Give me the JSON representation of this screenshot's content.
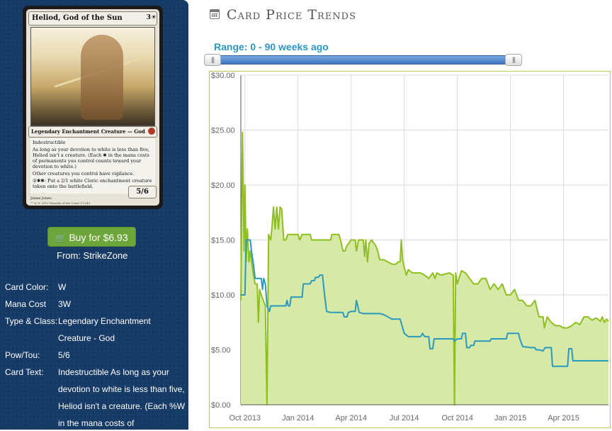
{
  "card": {
    "name": "Heliod, God of the Sun",
    "cost": "3☀",
    "type_line": "Legendary Enchantment Creature — God",
    "rules": [
      "Indestructible",
      "As long as your devotion to white is less than five, Heliod isn't a creature. (Each ✱ in the mana costs of permanents you control counts toward your devotion to white.)",
      "Other creatures you control have vigilance.",
      "②✱✱: Put a 2/1 white Cleric enchantment creature token onto the battlefield."
    ],
    "power_toughness": "5/6",
    "artist": "Jaime Jones",
    "copyright": "™ & © 2013 Wizards of the Coast 17/249"
  },
  "buy": {
    "icon": "shopping-cart-icon",
    "label": "Buy for $6.93",
    "from": "From: StrikeZone"
  },
  "info": [
    {
      "label": "Card Color:",
      "value": "W"
    },
    {
      "label": "Mana Cost",
      "value": "3W"
    },
    {
      "label": "Type & Class:",
      "value": "Legendary Enchantment Creature - God"
    },
    {
      "label": "Pow/Tou:",
      "value": "5/6"
    },
    {
      "label": "Card Text:",
      "value": "Indestructible As long as your devotion to white is less than five, Heliod isn't a creature. (Each %W in the mana costs of"
    }
  ],
  "header": {
    "icon": "calendar-icon",
    "title": "Card Price Trends"
  },
  "range": {
    "label": "Range: 0 - 90 weeks ago",
    "left_handle": "|||",
    "right_handle": "|||"
  },
  "colors": {
    "green": "#8fbf1f",
    "green_fill": "#d6e9a6",
    "blue": "#2a9bbf",
    "sidebar": "#163a66",
    "button": "#6ca63a"
  },
  "chart_data": {
    "type": "line",
    "title": "",
    "xlabel": "",
    "ylabel": "",
    "ylim": [
      0,
      30
    ],
    "xlim": [
      0,
      90
    ],
    "y_ticks": [
      "$0.00",
      "$5.00",
      "$10.00",
      "$15.00",
      "$20.00",
      "$25.00",
      "$30.00"
    ],
    "x_ticks": [
      {
        "label": "Oct 2013",
        "x": 1
      },
      {
        "label": "Jan 2014",
        "x": 14
      },
      {
        "label": "Apr 2014",
        "x": 27
      },
      {
        "label": "Jul 2014",
        "x": 40
      },
      {
        "label": "Oct 2014",
        "x": 53
      },
      {
        "label": "Jan 2015",
        "x": 66
      },
      {
        "label": "Apr 2015",
        "x": 79
      }
    ],
    "grid": true,
    "series": [
      {
        "color": "#8fbf1f",
        "fill": true,
        "points": [
          [
            0,
            9.5
          ],
          [
            0.4,
            24.8
          ],
          [
            0.8,
            14
          ],
          [
            1,
            20
          ],
          [
            1.3,
            13
          ],
          [
            1.6,
            16
          ],
          [
            2,
            13
          ],
          [
            2.3,
            14
          ],
          [
            3,
            12
          ],
          [
            3.5,
            11
          ],
          [
            4,
            11
          ],
          [
            4.3,
            7.5
          ],
          [
            4.6,
            10.5
          ],
          [
            5,
            10
          ],
          [
            5.5,
            9.5
          ],
          [
            6,
            9
          ],
          [
            6.4,
            0
          ],
          [
            6.8,
            15.5
          ],
          [
            7.3,
            15
          ],
          [
            7.6,
            16
          ],
          [
            8,
            18
          ],
          [
            8.4,
            16
          ],
          [
            8.8,
            18
          ],
          [
            9.2,
            16
          ],
          [
            9.6,
            18
          ],
          [
            10,
            17.8
          ],
          [
            10.5,
            15
          ],
          [
            11,
            15
          ],
          [
            11.5,
            15.5
          ],
          [
            13,
            15.5
          ],
          [
            14,
            15.5
          ],
          [
            14.4,
            15
          ],
          [
            15,
            15.5
          ],
          [
            17,
            15.5
          ],
          [
            17.3,
            15
          ],
          [
            22,
            15
          ],
          [
            22.3,
            15.5
          ],
          [
            24,
            15.5
          ],
          [
            24.4,
            15
          ],
          [
            25,
            14
          ],
          [
            25.5,
            14
          ],
          [
            26,
            14.5
          ],
          [
            27,
            15
          ],
          [
            28,
            15
          ],
          [
            28.3,
            14
          ],
          [
            28.8,
            15
          ],
          [
            30,
            15
          ],
          [
            30.3,
            13.5
          ],
          [
            30.6,
            15
          ],
          [
            31,
            13
          ],
          [
            31.4,
            14.7
          ],
          [
            32,
            15
          ],
          [
            33,
            14.5
          ],
          [
            33.5,
            14
          ],
          [
            34,
            13.2
          ],
          [
            35,
            13.2
          ],
          [
            36,
            13
          ],
          [
            37,
            12.8
          ],
          [
            38,
            12.8
          ],
          [
            38.5,
            13
          ],
          [
            39,
            13
          ],
          [
            39.3,
            15
          ],
          [
            39.6,
            13.2
          ],
          [
            40,
            12.5
          ],
          [
            40.5,
            11.8
          ],
          [
            41,
            12.3
          ],
          [
            42,
            12
          ],
          [
            43,
            12
          ],
          [
            44,
            12
          ],
          [
            45,
            11.8
          ],
          [
            46,
            11.5
          ],
          [
            47,
            12
          ],
          [
            47.5,
            11.5
          ],
          [
            48,
            12
          ],
          [
            49,
            11.8
          ],
          [
            50,
            11.9
          ],
          [
            51,
            12
          ],
          [
            52,
            11.8
          ],
          [
            52.3,
            0
          ],
          [
            52.6,
            12
          ],
          [
            53,
            11
          ],
          [
            54,
            12.2
          ],
          [
            55,
            12
          ],
          [
            56,
            11.5
          ],
          [
            57,
            11
          ],
          [
            58,
            11
          ],
          [
            59,
            11.5
          ],
          [
            60,
            11.5
          ],
          [
            61,
            10.5
          ],
          [
            62,
            11
          ],
          [
            63,
            10.5
          ],
          [
            64,
            11
          ],
          [
            65,
            10
          ],
          [
            66,
            10
          ],
          [
            67,
            10.5
          ],
          [
            68,
            9.5
          ],
          [
            69,
            9.5
          ],
          [
            70,
            9
          ],
          [
            71,
            9
          ],
          [
            72,
            9.5
          ],
          [
            73,
            8
          ],
          [
            74,
            8
          ],
          [
            74.3,
            7
          ],
          [
            75,
            8
          ],
          [
            76,
            7.5
          ],
          [
            77,
            7.2
          ],
          [
            78,
            7.2
          ],
          [
            79,
            7
          ],
          [
            80,
            7
          ],
          [
            81,
            7.2
          ],
          [
            82,
            7.5
          ],
          [
            83,
            7.3
          ],
          [
            84,
            8
          ],
          [
            85,
            8
          ],
          [
            86,
            7.7
          ],
          [
            87,
            7.9
          ],
          [
            88,
            7.6
          ],
          [
            88.5,
            8
          ],
          [
            89,
            7.5
          ],
          [
            89.5,
            7.8
          ],
          [
            90,
            7.6
          ]
        ]
      },
      {
        "color": "#2a9bbf",
        "fill": false,
        "points": [
          [
            0,
            10
          ],
          [
            1,
            10
          ],
          [
            1.3,
            15
          ],
          [
            2.3,
            15
          ],
          [
            2.6,
            14
          ],
          [
            3,
            13
          ],
          [
            3.5,
            11.5
          ],
          [
            4,
            11.5
          ],
          [
            5,
            11.5
          ],
          [
            5.3,
            10.5
          ],
          [
            5.6,
            11.5
          ],
          [
            6,
            11
          ],
          [
            6.4,
            9
          ],
          [
            7,
            8.5
          ],
          [
            7.3,
            9
          ],
          [
            11,
            9
          ],
          [
            11.3,
            9.5
          ],
          [
            11.6,
            9
          ],
          [
            12,
            9
          ],
          [
            12.3,
            9.8
          ],
          [
            15,
            9.8
          ],
          [
            15.3,
            11
          ],
          [
            17,
            11
          ],
          [
            17.3,
            11.3
          ],
          [
            18,
            11.3
          ],
          [
            18.3,
            11.6
          ],
          [
            19,
            11.6
          ],
          [
            19.3,
            11.8
          ],
          [
            20,
            11.8
          ],
          [
            20.5,
            10
          ],
          [
            21,
            8.5
          ],
          [
            22,
            8.4
          ],
          [
            25,
            8.4
          ],
          [
            25.3,
            8
          ],
          [
            26,
            8
          ],
          [
            26.3,
            8.4
          ],
          [
            27,
            8.5
          ],
          [
            28,
            8.5
          ],
          [
            28.3,
            9.5
          ],
          [
            29,
            8.4
          ],
          [
            30,
            8.3
          ],
          [
            34,
            8.3
          ],
          [
            35,
            8.2
          ],
          [
            36,
            8
          ],
          [
            37,
            7.8
          ],
          [
            38,
            7.8
          ],
          [
            39,
            7.8
          ],
          [
            40,
            6.5
          ],
          [
            41,
            6.2
          ],
          [
            44,
            6.2
          ],
          [
            44.5,
            6.5
          ],
          [
            45,
            6.2
          ],
          [
            46,
            6.2
          ],
          [
            46.3,
            5.1
          ],
          [
            47,
            5.1
          ],
          [
            47.3,
            6
          ],
          [
            52,
            6
          ],
          [
            52.3,
            5.8
          ],
          [
            53,
            6
          ],
          [
            54,
            6
          ],
          [
            54.3,
            6.5
          ],
          [
            55,
            6.5
          ],
          [
            55.3,
            5.2
          ],
          [
            56,
            5.2
          ],
          [
            56.3,
            5.4
          ],
          [
            57,
            5.4
          ],
          [
            57.3,
            5.8
          ],
          [
            61,
            5.8
          ],
          [
            61.3,
            6
          ],
          [
            65,
            6
          ],
          [
            65.3,
            6.5
          ],
          [
            68,
            6.5
          ],
          [
            68.3,
            6
          ],
          [
            69,
            5.3
          ],
          [
            71,
            5.2
          ],
          [
            72,
            5.2
          ],
          [
            72.3,
            5
          ],
          [
            73,
            5
          ],
          [
            74,
            4.9
          ],
          [
            74.5,
            5.2
          ],
          [
            76,
            5.2
          ],
          [
            76.3,
            3.5
          ],
          [
            80,
            3.5
          ],
          [
            80.3,
            5.1
          ],
          [
            81,
            5.1
          ],
          [
            81.3,
            4
          ],
          [
            90,
            4
          ]
        ]
      }
    ]
  }
}
